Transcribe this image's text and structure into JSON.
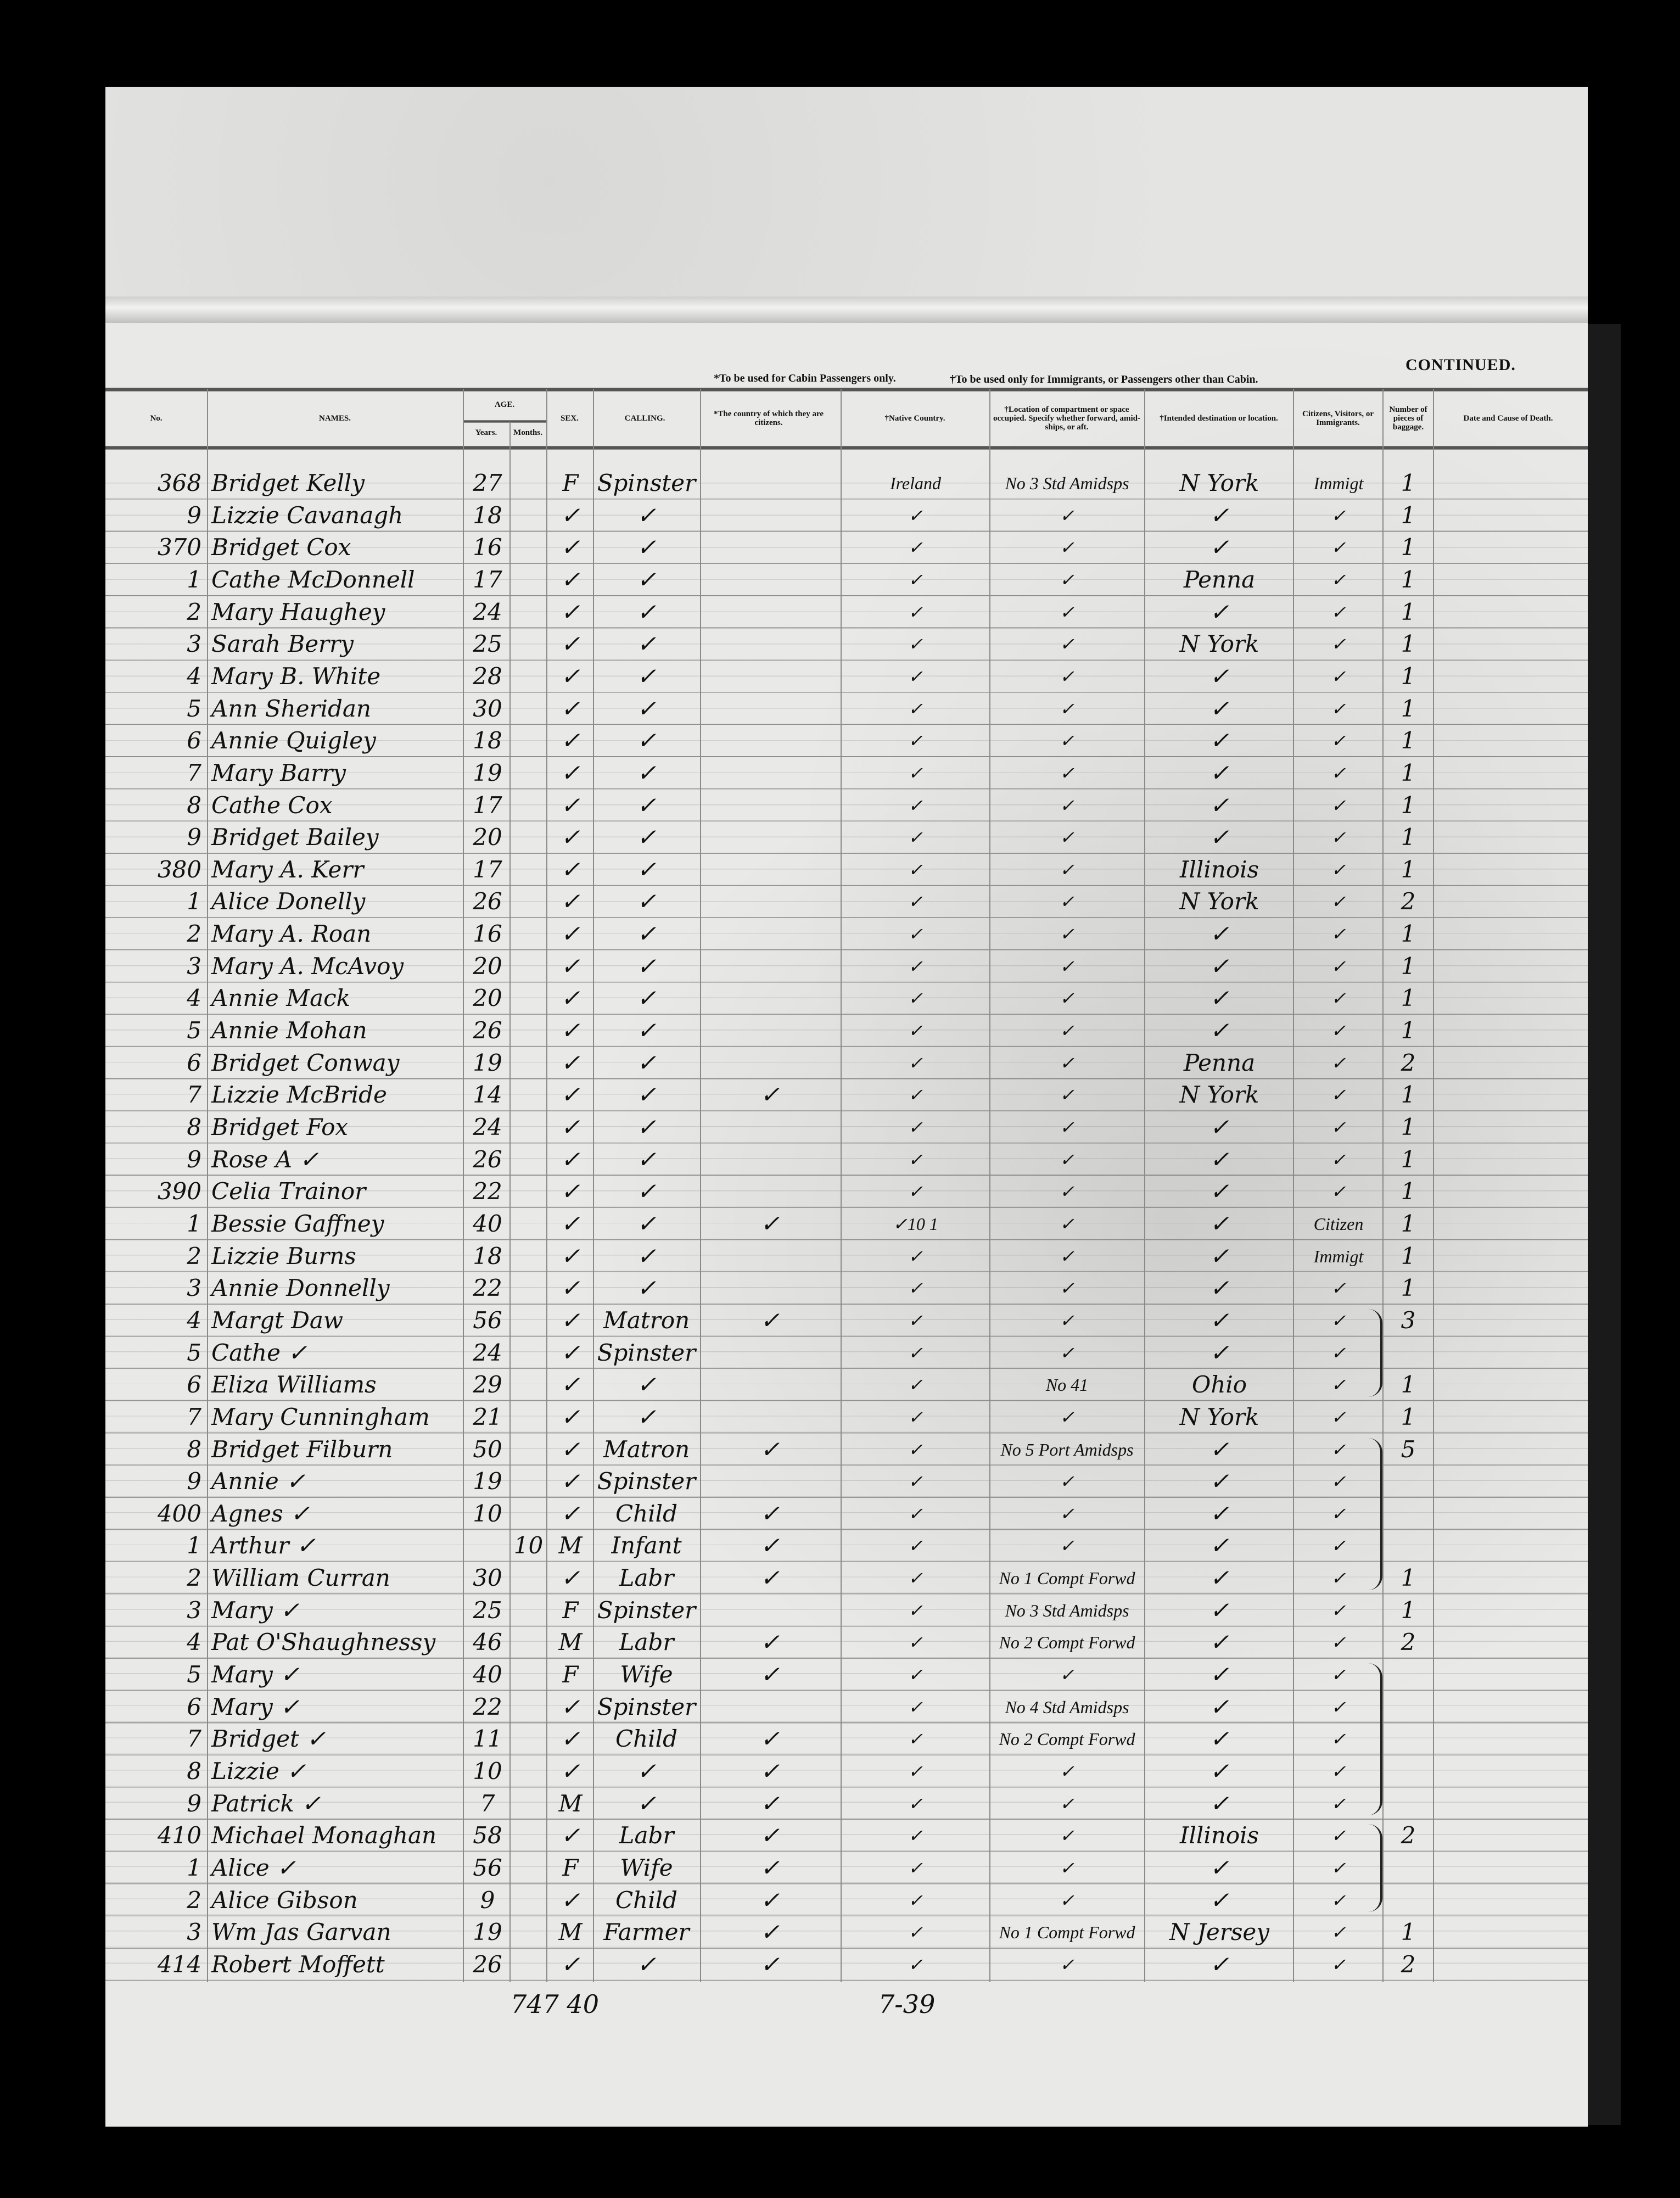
{
  "notes": {
    "cabin": "*To be used for Cabin Passengers only.",
    "immigrants": "†To be used only for Immigrants, or Passengers other than Cabin.",
    "continued": "CONTINUED."
  },
  "headers": {
    "no": "No.",
    "names": "NAMES.",
    "age": "AGE.",
    "years": "Years.",
    "months": "Months.",
    "sex": "SEX.",
    "calling": "CALLING.",
    "citizen_of": "*The country of which they are citizens.",
    "native": "†Native Country.",
    "location": "†Location of compartment or space occupied. Specify whether forward, amid-ships, or aft.",
    "destination": "†Intended destination or location.",
    "status": "Citizens, Visitors, or Immigrants.",
    "baggage": "Number of pieces of baggage.",
    "death": "Date and Cause of Death."
  },
  "row_fields": [
    "no",
    "name",
    "years",
    "months",
    "sex",
    "calling",
    "citizen_of",
    "native",
    "location",
    "destination",
    "status",
    "baggage"
  ],
  "rows": [
    [
      "368",
      "Bridget Kelly",
      "27",
      "",
      "F",
      "Spinster",
      "",
      "Ireland",
      "No 3 Std Amidsps",
      "N York",
      "Immigt",
      "1"
    ],
    [
      "9",
      "Lizzie Cavanagh",
      "18",
      "",
      "✓",
      "✓",
      "",
      "✓",
      "✓",
      "✓",
      "✓",
      "1"
    ],
    [
      "370",
      "Bridget Cox",
      "16",
      "",
      "✓",
      "✓",
      "",
      "✓",
      "✓",
      "✓",
      "✓",
      "1"
    ],
    [
      "1",
      "Cathe McDonnell",
      "17",
      "",
      "✓",
      "✓",
      "",
      "✓",
      "✓",
      "Penna",
      "✓",
      "1"
    ],
    [
      "2",
      "Mary Haughey",
      "24",
      "",
      "✓",
      "✓",
      "",
      "✓",
      "✓",
      "✓",
      "✓",
      "1"
    ],
    [
      "3",
      "Sarah Berry",
      "25",
      "",
      "✓",
      "✓",
      "",
      "✓",
      "✓",
      "N York",
      "✓",
      "1"
    ],
    [
      "4",
      "Mary B. White",
      "28",
      "",
      "✓",
      "✓",
      "",
      "✓",
      "✓",
      "✓",
      "✓",
      "1"
    ],
    [
      "5",
      "Ann Sheridan",
      "30",
      "",
      "✓",
      "✓",
      "",
      "✓",
      "✓",
      "✓",
      "✓",
      "1"
    ],
    [
      "6",
      "Annie Quigley",
      "18",
      "",
      "✓",
      "✓",
      "",
      "✓",
      "✓",
      "✓",
      "✓",
      "1"
    ],
    [
      "7",
      "Mary Barry",
      "19",
      "",
      "✓",
      "✓",
      "",
      "✓",
      "✓",
      "✓",
      "✓",
      "1"
    ],
    [
      "8",
      "Cathe Cox",
      "17",
      "",
      "✓",
      "✓",
      "",
      "✓",
      "✓",
      "✓",
      "✓",
      "1"
    ],
    [
      "9",
      "Bridget Bailey",
      "20",
      "",
      "✓",
      "✓",
      "",
      "✓",
      "✓",
      "✓",
      "✓",
      "1"
    ],
    [
      "380",
      "Mary A. Kerr",
      "17",
      "",
      "✓",
      "✓",
      "",
      "✓",
      "✓",
      "Illinois",
      "✓",
      "1"
    ],
    [
      "1",
      "Alice Donelly",
      "26",
      "",
      "✓",
      "✓",
      "",
      "✓",
      "✓",
      "N York",
      "✓",
      "2"
    ],
    [
      "2",
      "Mary A. Roan",
      "16",
      "",
      "✓",
      "✓",
      "",
      "✓",
      "✓",
      "✓",
      "✓",
      "1"
    ],
    [
      "3",
      "Mary A. McAvoy",
      "20",
      "",
      "✓",
      "✓",
      "",
      "✓",
      "✓",
      "✓",
      "✓",
      "1"
    ],
    [
      "4",
      "Annie Mack",
      "20",
      "",
      "✓",
      "✓",
      "",
      "✓",
      "✓",
      "✓",
      "✓",
      "1"
    ],
    [
      "5",
      "Annie Mohan",
      "26",
      "",
      "✓",
      "✓",
      "",
      "✓",
      "✓",
      "✓",
      "✓",
      "1"
    ],
    [
      "6",
      "Bridget Conway",
      "19",
      "",
      "✓",
      "✓",
      "",
      "✓",
      "✓",
      "Penna",
      "✓",
      "2"
    ],
    [
      "7",
      "Lizzie McBride",
      "14",
      "",
      "✓",
      "✓",
      "✓",
      "✓",
      "✓",
      "N York",
      "✓",
      "1"
    ],
    [
      "8",
      "Bridget Fox",
      "24",
      "",
      "✓",
      "✓",
      "",
      "✓",
      "✓",
      "✓",
      "✓",
      "1"
    ],
    [
      "9",
      "Rose A   ✓",
      "26",
      "",
      "✓",
      "✓",
      "",
      "✓",
      "✓",
      "✓",
      "✓",
      "1"
    ],
    [
      "390",
      "Celia Trainor",
      "22",
      "",
      "✓",
      "✓",
      "",
      "✓",
      "✓",
      "✓",
      "✓",
      "1"
    ],
    [
      "1",
      "Bessie Gaffney",
      "40",
      "",
      "✓",
      "✓",
      "✓",
      "✓10  1",
      "✓",
      "✓",
      "Citizen",
      "1"
    ],
    [
      "2",
      "Lizzie Burns",
      "18",
      "",
      "✓",
      "✓",
      "",
      "✓",
      "✓",
      "✓",
      "Immigt",
      "1"
    ],
    [
      "3",
      "Annie Donnelly",
      "22",
      "",
      "✓",
      "✓",
      "",
      "✓",
      "✓",
      "✓",
      "✓",
      "1"
    ],
    [
      "4",
      "Margt Daw",
      "56",
      "",
      "✓",
      "Matron",
      "✓",
      "✓",
      "✓",
      "✓",
      "✓",
      "3"
    ],
    [
      "5",
      "Cathe   ✓",
      "24",
      "",
      "✓",
      "Spinster",
      "",
      "✓",
      "✓",
      "✓",
      "✓",
      ""
    ],
    [
      "6",
      "Eliza Williams",
      "29",
      "",
      "✓",
      "✓",
      "",
      "✓",
      "No 41",
      "Ohio",
      "✓",
      "1"
    ],
    [
      "7",
      "Mary Cunningham",
      "21",
      "",
      "✓",
      "✓",
      "",
      "✓",
      "✓",
      "N York",
      "✓",
      "1"
    ],
    [
      "8",
      "Bridget Filburn",
      "50",
      "",
      "✓",
      "Matron",
      "✓",
      "✓",
      "No 5 Port Amidsps",
      "✓",
      "✓",
      "5"
    ],
    [
      "9",
      "Annie   ✓",
      "19",
      "",
      "✓",
      "Spinster",
      "",
      "✓",
      "✓",
      "✓",
      "✓",
      ""
    ],
    [
      "400",
      "Agnes   ✓",
      "10",
      "",
      "✓",
      "Child",
      "✓",
      "✓",
      "✓",
      "✓",
      "✓",
      ""
    ],
    [
      "1",
      "Arthur   ✓",
      "",
      "10",
      "M",
      "Infant",
      "✓",
      "✓",
      "✓",
      "✓",
      "✓",
      ""
    ],
    [
      "2",
      "William Curran",
      "30",
      "",
      "✓",
      "Labr",
      "✓",
      "✓",
      "No 1 Compt Forwd",
      "✓",
      "✓",
      "1"
    ],
    [
      "3",
      "Mary   ✓",
      "25",
      "",
      "F",
      "Spinster",
      "",
      "✓",
      "No 3 Std Amidsps",
      "✓",
      "✓",
      "1"
    ],
    [
      "4",
      "Pat O'Shaughnessy",
      "46",
      "",
      "M",
      "Labr",
      "✓",
      "✓",
      "No 2 Compt Forwd",
      "✓",
      "✓",
      "2"
    ],
    [
      "5",
      "Mary   ✓",
      "40",
      "",
      "F",
      "Wife",
      "✓",
      "✓",
      "✓",
      "✓",
      "✓",
      ""
    ],
    [
      "6",
      "Mary   ✓",
      "22",
      "",
      "✓",
      "Spinster",
      "",
      "✓",
      "No 4 Std Amidsps",
      "✓",
      "✓",
      ""
    ],
    [
      "7",
      "Bridget   ✓",
      "11",
      "",
      "✓",
      "Child",
      "✓",
      "✓",
      "No 2 Compt Forwd",
      "✓",
      "✓",
      ""
    ],
    [
      "8",
      "Lizzie   ✓",
      "10",
      "",
      "✓",
      "✓",
      "✓",
      "✓",
      "✓",
      "✓",
      "✓",
      ""
    ],
    [
      "9",
      "Patrick   ✓",
      "7",
      "",
      "M",
      "✓",
      "✓",
      "✓",
      "✓",
      "✓",
      "✓",
      ""
    ],
    [
      "410",
      "Michael Monaghan",
      "58",
      "",
      "✓",
      "Labr",
      "✓",
      "✓",
      "✓",
      "Illinois",
      "✓",
      "2"
    ],
    [
      "1",
      "Alice   ✓",
      "56",
      "",
      "F",
      "Wife",
      "✓",
      "✓",
      "✓",
      "✓",
      "✓",
      ""
    ],
    [
      "2",
      "Alice Gibson",
      "9",
      "",
      "✓",
      "Child",
      "✓",
      "✓",
      "✓",
      "✓",
      "✓",
      ""
    ],
    [
      "3",
      "Wm Jas Garvan",
      "19",
      "",
      "M",
      "Farmer",
      "✓",
      "✓",
      "No 1 Compt Forwd",
      "N Jersey",
      "✓",
      "1"
    ],
    [
      "414",
      "Robert Moffett",
      "26",
      "",
      "✓",
      "✓",
      "✓",
      "✓",
      "✓",
      "✓",
      "✓",
      "2"
    ]
  ],
  "footer": {
    "age_total": "747 40",
    "native_note": "7-39"
  }
}
